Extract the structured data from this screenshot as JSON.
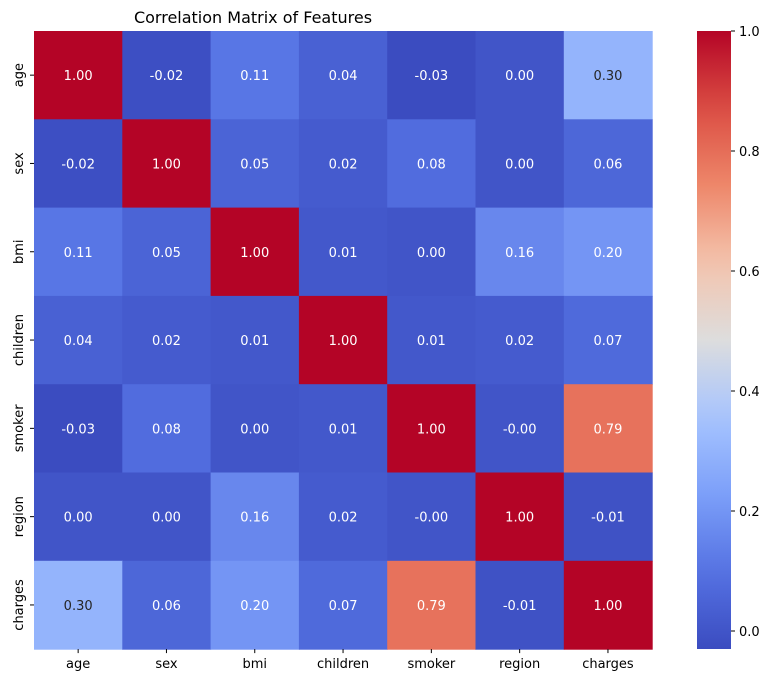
{
  "chart_data": {
    "type": "heatmap",
    "title": "Correlation Matrix of Features",
    "xlabel": "",
    "ylabel": "",
    "x_categories": [
      "age",
      "sex",
      "bmi",
      "children",
      "smoker",
      "region",
      "charges"
    ],
    "y_categories": [
      "age",
      "sex",
      "bmi",
      "children",
      "smoker",
      "region",
      "charges"
    ],
    "values": [
      [
        1.0,
        -0.02,
        0.11,
        0.04,
        -0.03,
        0.0,
        0.3
      ],
      [
        -0.02,
        1.0,
        0.05,
        0.02,
        0.08,
        0.0,
        0.06
      ],
      [
        0.11,
        0.05,
        1.0,
        0.01,
        0.0,
        0.16,
        0.2
      ],
      [
        0.04,
        0.02,
        0.01,
        1.0,
        0.01,
        0.02,
        0.07
      ],
      [
        -0.03,
        0.08,
        0.0,
        0.01,
        1.0,
        -0.0,
        0.79
      ],
      [
        0.0,
        0.0,
        0.16,
        0.02,
        -0.0,
        1.0,
        -0.01
      ],
      [
        0.3,
        0.06,
        0.2,
        0.07,
        0.79,
        -0.01,
        1.0
      ]
    ],
    "labels": [
      [
        "1.00",
        "-0.02",
        "0.11",
        "0.04",
        "-0.03",
        "0.00",
        "0.30"
      ],
      [
        "-0.02",
        "1.00",
        "0.05",
        "0.02",
        "0.08",
        "0.00",
        "0.06"
      ],
      [
        "0.11",
        "0.05",
        "1.00",
        "0.01",
        "0.00",
        "0.16",
        "0.20"
      ],
      [
        "0.04",
        "0.02",
        "0.01",
        "1.00",
        "0.01",
        "0.02",
        "0.07"
      ],
      [
        "-0.03",
        "0.08",
        "0.00",
        "0.01",
        "1.00",
        "-0.00",
        "0.79"
      ],
      [
        "0.00",
        "0.00",
        "0.16",
        "0.02",
        "-0.00",
        "1.00",
        "-0.01"
      ],
      [
        "0.30",
        "0.06",
        "0.20",
        "0.07",
        "0.79",
        "-0.01",
        "1.00"
      ]
    ],
    "colormap": "coolwarm",
    "vmin": -0.03,
    "vmax": 1.0,
    "colorbar": {
      "ticks": [
        0.0,
        0.2,
        0.4,
        0.6,
        0.8,
        1.0
      ],
      "tick_labels": [
        "0.0",
        "0.2",
        "0.4",
        "0.6",
        "0.8",
        "1.0"
      ],
      "placement": "right"
    },
    "grid": false
  }
}
